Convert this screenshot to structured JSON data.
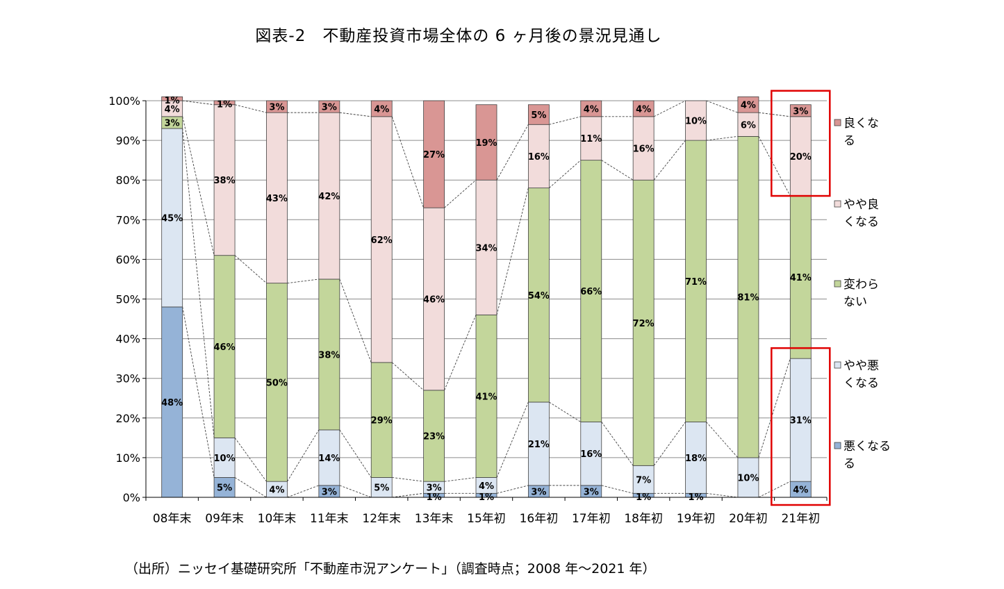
{
  "title": "図表-2　不動産投資市場全体の 6 ヶ月後の景況見通し",
  "source": "（出所）ニッセイ基礎研究所「不動産市況アンケート」（調査時点；2008 年～2021 年）",
  "chart_data": {
    "type": "bar",
    "stacked": true,
    "percent": true,
    "ylim": [
      0,
      100
    ],
    "yticks": [
      "0%",
      "10%",
      "20%",
      "30%",
      "40%",
      "50%",
      "60%",
      "70%",
      "80%",
      "90%",
      "100%"
    ],
    "categories": [
      "08年末",
      "09年末",
      "10年末",
      "11年末",
      "12年末",
      "13年末",
      "15年初",
      "16年初",
      "17年初",
      "18年初",
      "19年初",
      "20年初",
      "21年初"
    ],
    "series": [
      {
        "name": "悪くなる",
        "legend_lines": [
          "悪くなる",
          "る"
        ],
        "color": "#95b3d7",
        "values": [
          48,
          5,
          0,
          3,
          0,
          1,
          1,
          3,
          3,
          1,
          1,
          0,
          4
        ],
        "labels": [
          "48%",
          "5%",
          "",
          "3%",
          "",
          "1%",
          "1%",
          "3%",
          "3%",
          "1%",
          "1%",
          "",
          "4%"
        ]
      },
      {
        "name": "やや悪くなる",
        "legend_lines": [
          "やや悪",
          "くなる"
        ],
        "color": "#dce6f2",
        "values": [
          45,
          10,
          4,
          14,
          5,
          3,
          4,
          21,
          16,
          7,
          18,
          10,
          31
        ],
        "labels": [
          "45%",
          "10%",
          "4%",
          "14%",
          "5%",
          "3%",
          "4%",
          "21%",
          "16%",
          "7%",
          "18%",
          "10%",
          "31%"
        ]
      },
      {
        "name": "変わらない",
        "legend_lines": [
          "変わら",
          "ない"
        ],
        "color": "#c3d69b",
        "values": [
          3,
          46,
          50,
          38,
          29,
          23,
          41,
          54,
          66,
          72,
          71,
          81,
          41
        ],
        "labels": [
          "3%",
          "46%",
          "50%",
          "38%",
          "29%",
          "23%",
          "41%",
          "54%",
          "66%",
          "72%",
          "71%",
          "81%",
          "41%"
        ]
      },
      {
        "name": "やや良くなる",
        "legend_lines": [
          "やや良",
          "くなる"
        ],
        "color": "#f2dcdb",
        "values": [
          4,
          38,
          43,
          42,
          62,
          46,
          34,
          16,
          11,
          16,
          10,
          6,
          20
        ],
        "labels": [
          "4%",
          "38%",
          "43%",
          "42%",
          "62%",
          "46%",
          "34%",
          "16%",
          "11%",
          "16%",
          "10%",
          "6%",
          "20%"
        ]
      },
      {
        "name": "良くなる",
        "legend_lines": [
          "良くな",
          "る"
        ],
        "color": "#d99694",
        "values": [
          1,
          1,
          3,
          3,
          4,
          27,
          19,
          5,
          4,
          4,
          0,
          4,
          3
        ],
        "labels": [
          "1%",
          "1%",
          "3%",
          "3%",
          "4%",
          "27%",
          "19%",
          "5%",
          "4%",
          "4%",
          "",
          "4%",
          "3%"
        ]
      }
    ],
    "highlight_color": "#e00000"
  }
}
